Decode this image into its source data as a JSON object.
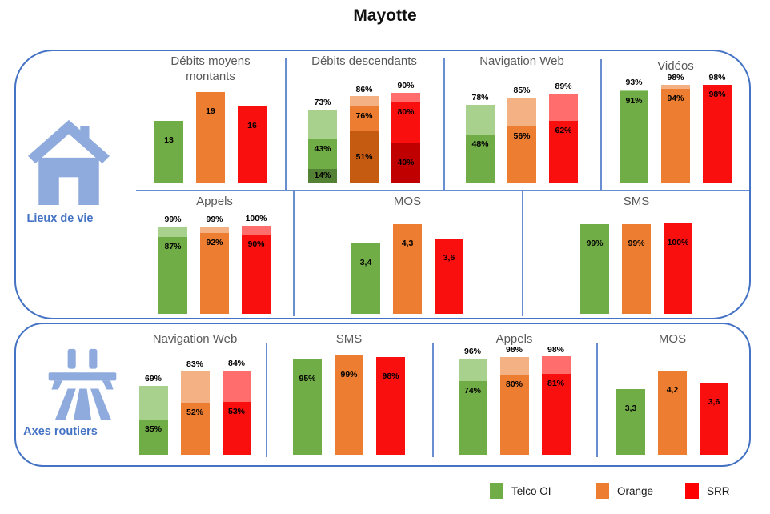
{
  "page_title": "Mayotte",
  "sections": [
    {
      "label": "Lieux de vie"
    },
    {
      "label": "Axes routiers"
    }
  ],
  "legend": [
    {
      "label": "Telco OI",
      "color": "#70AD47"
    },
    {
      "label": "Orange",
      "color": "#ED7D31"
    },
    {
      "label": "SRR",
      "color": "#FF0000"
    }
  ],
  "operator_colors": {
    "Telco OI": {
      "light": "#A9D18E",
      "mid": "#70AD47",
      "dark": "#548235"
    },
    "Orange": {
      "light": "#F4B183",
      "mid": "#ED7D31",
      "dark": "#C55A11"
    },
    "SRR": {
      "light": "#FF6D6D",
      "mid": "#FA0F0F",
      "dark": "#C00000"
    }
  },
  "chart_data": {
    "type": "bar",
    "title": "Mayotte",
    "operators": [
      "Telco OI",
      "Orange",
      "SRR"
    ],
    "legend_position": "bottom-right",
    "note": "stacked segments listed top(light)-to-bottom(dark); segment values are cumulative percentages or absolute scores",
    "panels": [
      {
        "title": "Débits moyens montants",
        "section": "Lieux de vie",
        "ylim": [
          0,
          21
        ],
        "bars": [
          {
            "operator": "Telco OI",
            "segments": [
              {
                "value": 13,
                "label": "13"
              }
            ]
          },
          {
            "operator": "Orange",
            "segments": [
              {
                "value": 19,
                "label": "19"
              }
            ]
          },
          {
            "operator": "SRR",
            "segments": [
              {
                "value": 16,
                "label": "16"
              }
            ]
          }
        ]
      },
      {
        "title": "Débits descendants",
        "section": "Lieux de vie",
        "ylim": [
          0,
          100
        ],
        "bars": [
          {
            "operator": "Telco OI",
            "segments": [
              {
                "value": 73,
                "label": "73%"
              },
              {
                "value": 43,
                "label": "43%"
              },
              {
                "value": 14,
                "label": "14%"
              }
            ]
          },
          {
            "operator": "Orange",
            "segments": [
              {
                "value": 86,
                "label": "86%"
              },
              {
                "value": 76,
                "label": "76%"
              },
              {
                "value": 51,
                "label": "51%"
              }
            ]
          },
          {
            "operator": "SRR",
            "segments": [
              {
                "value": 90,
                "label": "90%"
              },
              {
                "value": 80,
                "label": "80%"
              },
              {
                "value": 40,
                "label": "40%"
              }
            ]
          }
        ]
      },
      {
        "title": "Navigation Web",
        "section": "Lieux de vie",
        "ylim": [
          0,
          100
        ],
        "bars": [
          {
            "operator": "Telco OI",
            "segments": [
              {
                "value": 78,
                "label": "78%"
              },
              {
                "value": 48,
                "label": "48%"
              }
            ]
          },
          {
            "operator": "Orange",
            "segments": [
              {
                "value": 85,
                "label": "85%"
              },
              {
                "value": 56,
                "label": "56%"
              }
            ]
          },
          {
            "operator": "SRR",
            "segments": [
              {
                "value": 89,
                "label": "89%"
              },
              {
                "value": 62,
                "label": "62%"
              }
            ]
          }
        ]
      },
      {
        "title": "Vidéos",
        "section": "Lieux de vie",
        "ylim": [
          0,
          100
        ],
        "bars": [
          {
            "operator": "Telco OI",
            "segments": [
              {
                "value": 93,
                "label": "93%"
              },
              {
                "value": 91,
                "label": "91%"
              }
            ]
          },
          {
            "operator": "Orange",
            "segments": [
              {
                "value": 98,
                "label": "98%"
              },
              {
                "value": 94,
                "label": "94%"
              }
            ]
          },
          {
            "operator": "SRR",
            "segments": [
              {
                "value": 98,
                "label": "98%"
              },
              {
                "value": 98,
                "label": "98%"
              }
            ]
          }
        ]
      },
      {
        "title": "Appels",
        "section": "Lieux de vie",
        "ylim": [
          0,
          118
        ],
        "bars": [
          {
            "operator": "Telco OI",
            "segments": [
              {
                "value": 99,
                "label": "99%"
              },
              {
                "value": 87,
                "label": "87%"
              }
            ]
          },
          {
            "operator": "Orange",
            "segments": [
              {
                "value": 99,
                "label": "99%"
              },
              {
                "value": 92,
                "label": "92%"
              }
            ]
          },
          {
            "operator": "SRR",
            "segments": [
              {
                "value": 100,
                "label": "100%"
              },
              {
                "value": 90,
                "label": "90%"
              }
            ]
          }
        ]
      },
      {
        "title": "MOS",
        "section": "Lieux de vie",
        "ylim": [
          0,
          5
        ],
        "bars": [
          {
            "operator": "Telco OI",
            "segments": [
              {
                "value": 3.4,
                "label": "3,4"
              }
            ]
          },
          {
            "operator": "Orange",
            "segments": [
              {
                "value": 4.3,
                "label": "4,3"
              }
            ]
          },
          {
            "operator": "SRR",
            "segments": [
              {
                "value": 3.6,
                "label": "3,6"
              }
            ]
          }
        ]
      },
      {
        "title": "SMS",
        "section": "Lieux de vie",
        "ylim": [
          0,
          115
        ],
        "bars": [
          {
            "operator": "Telco OI",
            "segments": [
              {
                "value": 99,
                "label": "99%"
              }
            ]
          },
          {
            "operator": "Orange",
            "segments": [
              {
                "value": 99,
                "label": "99%"
              }
            ]
          },
          {
            "operator": "SRR",
            "segments": [
              {
                "value": 100,
                "label": "100%"
              }
            ]
          }
        ]
      },
      {
        "title": "Navigation Web",
        "section": "Axes routiers",
        "ylim": [
          0,
          100
        ],
        "bars": [
          {
            "operator": "Telco OI",
            "segments": [
              {
                "value": 69,
                "label": "69%"
              },
              {
                "value": 35,
                "label": "35%"
              }
            ]
          },
          {
            "operator": "Orange",
            "segments": [
              {
                "value": 83,
                "label": "83%"
              },
              {
                "value": 52,
                "label": "52%"
              }
            ]
          },
          {
            "operator": "SRR",
            "segments": [
              {
                "value": 84,
                "label": "84%"
              },
              {
                "value": 53,
                "label": "53%"
              }
            ]
          }
        ]
      },
      {
        "title": "SMS",
        "section": "Axes routiers",
        "ylim": [
          0,
          100
        ],
        "bars": [
          {
            "operator": "Telco OI",
            "segments": [
              {
                "value": 95,
                "label": "95%"
              }
            ]
          },
          {
            "operator": "Orange",
            "segments": [
              {
                "value": 99,
                "label": "99%"
              }
            ]
          },
          {
            "operator": "SRR",
            "segments": [
              {
                "value": 98,
                "label": "98%"
              }
            ]
          }
        ]
      },
      {
        "title": "Appels",
        "section": "Axes routiers",
        "ylim": [
          0,
          100
        ],
        "bars": [
          {
            "operator": "Telco OI",
            "segments": [
              {
                "value": 96,
                "label": "96%"
              },
              {
                "value": 74,
                "label": "74%"
              }
            ]
          },
          {
            "operator": "Orange",
            "segments": [
              {
                "value": 98,
                "label": "98%"
              },
              {
                "value": 80,
                "label": "80%"
              }
            ]
          },
          {
            "operator": "SRR",
            "segments": [
              {
                "value": 98,
                "label": "98%"
              },
              {
                "value": 81,
                "label": "81%"
              }
            ]
          }
        ]
      },
      {
        "title": "MOS",
        "section": "Axes routiers",
        "ylim": [
          0,
          5
        ],
        "bars": [
          {
            "operator": "Telco OI",
            "segments": [
              {
                "value": 3.3,
                "label": "3,3"
              }
            ]
          },
          {
            "operator": "Orange",
            "segments": [
              {
                "value": 4.2,
                "label": "4,2"
              }
            ]
          },
          {
            "operator": "SRR",
            "segments": [
              {
                "value": 3.6,
                "label": "3,6"
              }
            ]
          }
        ]
      }
    ]
  }
}
